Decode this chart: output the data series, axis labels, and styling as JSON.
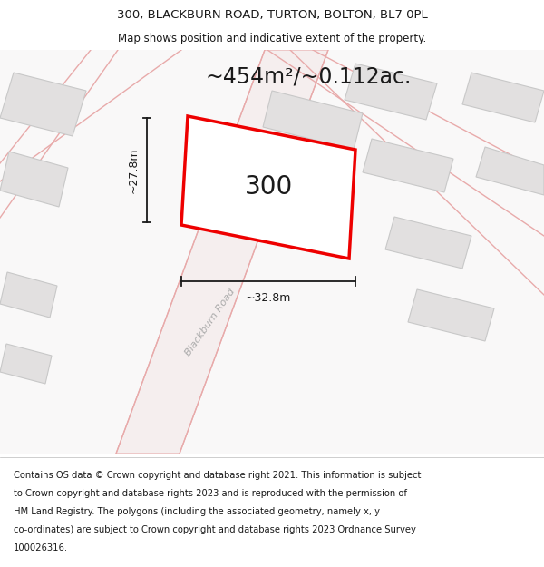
{
  "title_line1": "300, BLACKBURN ROAD, TURTON, BOLTON, BL7 0PL",
  "title_line2": "Map shows position and indicative extent of the property.",
  "area_label": "~454m²/~0.112ac.",
  "property_number": "300",
  "dim_width": "~32.8m",
  "dim_height": "~27.8m",
  "road_label": "Blackburn Road",
  "footer_lines": [
    "Contains OS data © Crown copyright and database right 2021. This information is subject",
    "to Crown copyright and database rights 2023 and is reproduced with the permission of",
    "HM Land Registry. The polygons (including the associated geometry, namely x, y",
    "co-ordinates) are subject to Crown copyright and database rights 2023 Ordnance Survey",
    "100026316."
  ],
  "map_bg": "#ffffff",
  "bld_fill": "#e2e0e0",
  "bld_edge": "#c8c8c8",
  "road_line": "#e8aaaa",
  "highlight_color": "#ee0000",
  "dim_color": "#1a1a1a",
  "title_fontsize": 9.5,
  "subtitle_fontsize": 8.5,
  "area_fontsize": 17,
  "number_fontsize": 20,
  "footer_fontsize": 7.2
}
